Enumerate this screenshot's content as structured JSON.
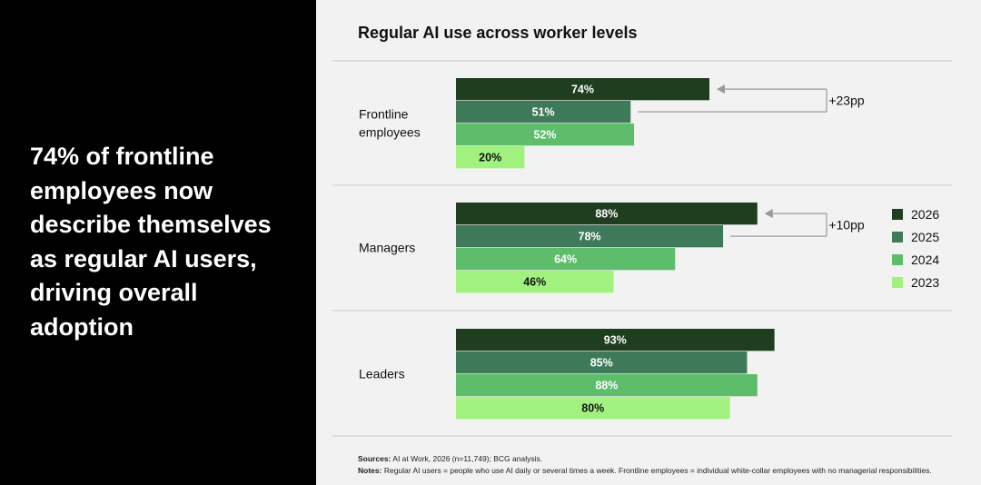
{
  "headline": "74% of frontline employees now describe themselves as regular AI users, driving overall adoption",
  "footer": {
    "sources_label": "Sources:",
    "sources_text": "AI at Work, 2026 (n=11,749); BCG analysis.",
    "notes_label": "Notes:",
    "notes_text": "Regular AI users = people who use AI daily or several times a week. Frontline employees = individual white-collar employees with no managerial responsibilities."
  },
  "colors": {
    "2026": "#1f3d1f",
    "2025": "#3e7a59",
    "2024": "#5dbd6b",
    "2023": "#a1f17e"
  },
  "chart_data": {
    "type": "bar",
    "orientation": "horizontal",
    "title": "Regular AI use across worker levels",
    "categories": [
      "Frontline employees",
      "Managers",
      "Leaders"
    ],
    "category_lines": [
      [
        "Frontline",
        "employees"
      ],
      [
        "Managers"
      ],
      [
        "Leaders"
      ]
    ],
    "xlim": [
      0,
      100
    ],
    "series": [
      {
        "name": "2026",
        "values": [
          74,
          88,
          93
        ]
      },
      {
        "name": "2025",
        "values": [
          51,
          78,
          85
        ]
      },
      {
        "name": "2024",
        "values": [
          52,
          64,
          88
        ]
      },
      {
        "name": "2023",
        "values": [
          20,
          46,
          80
        ]
      }
    ],
    "value_suffix": "%",
    "annotations": [
      {
        "category": "Frontline employees",
        "text": "+23pp"
      },
      {
        "category": "Managers",
        "text": "+10pp"
      }
    ],
    "legend_placement": "right",
    "grid": false
  }
}
